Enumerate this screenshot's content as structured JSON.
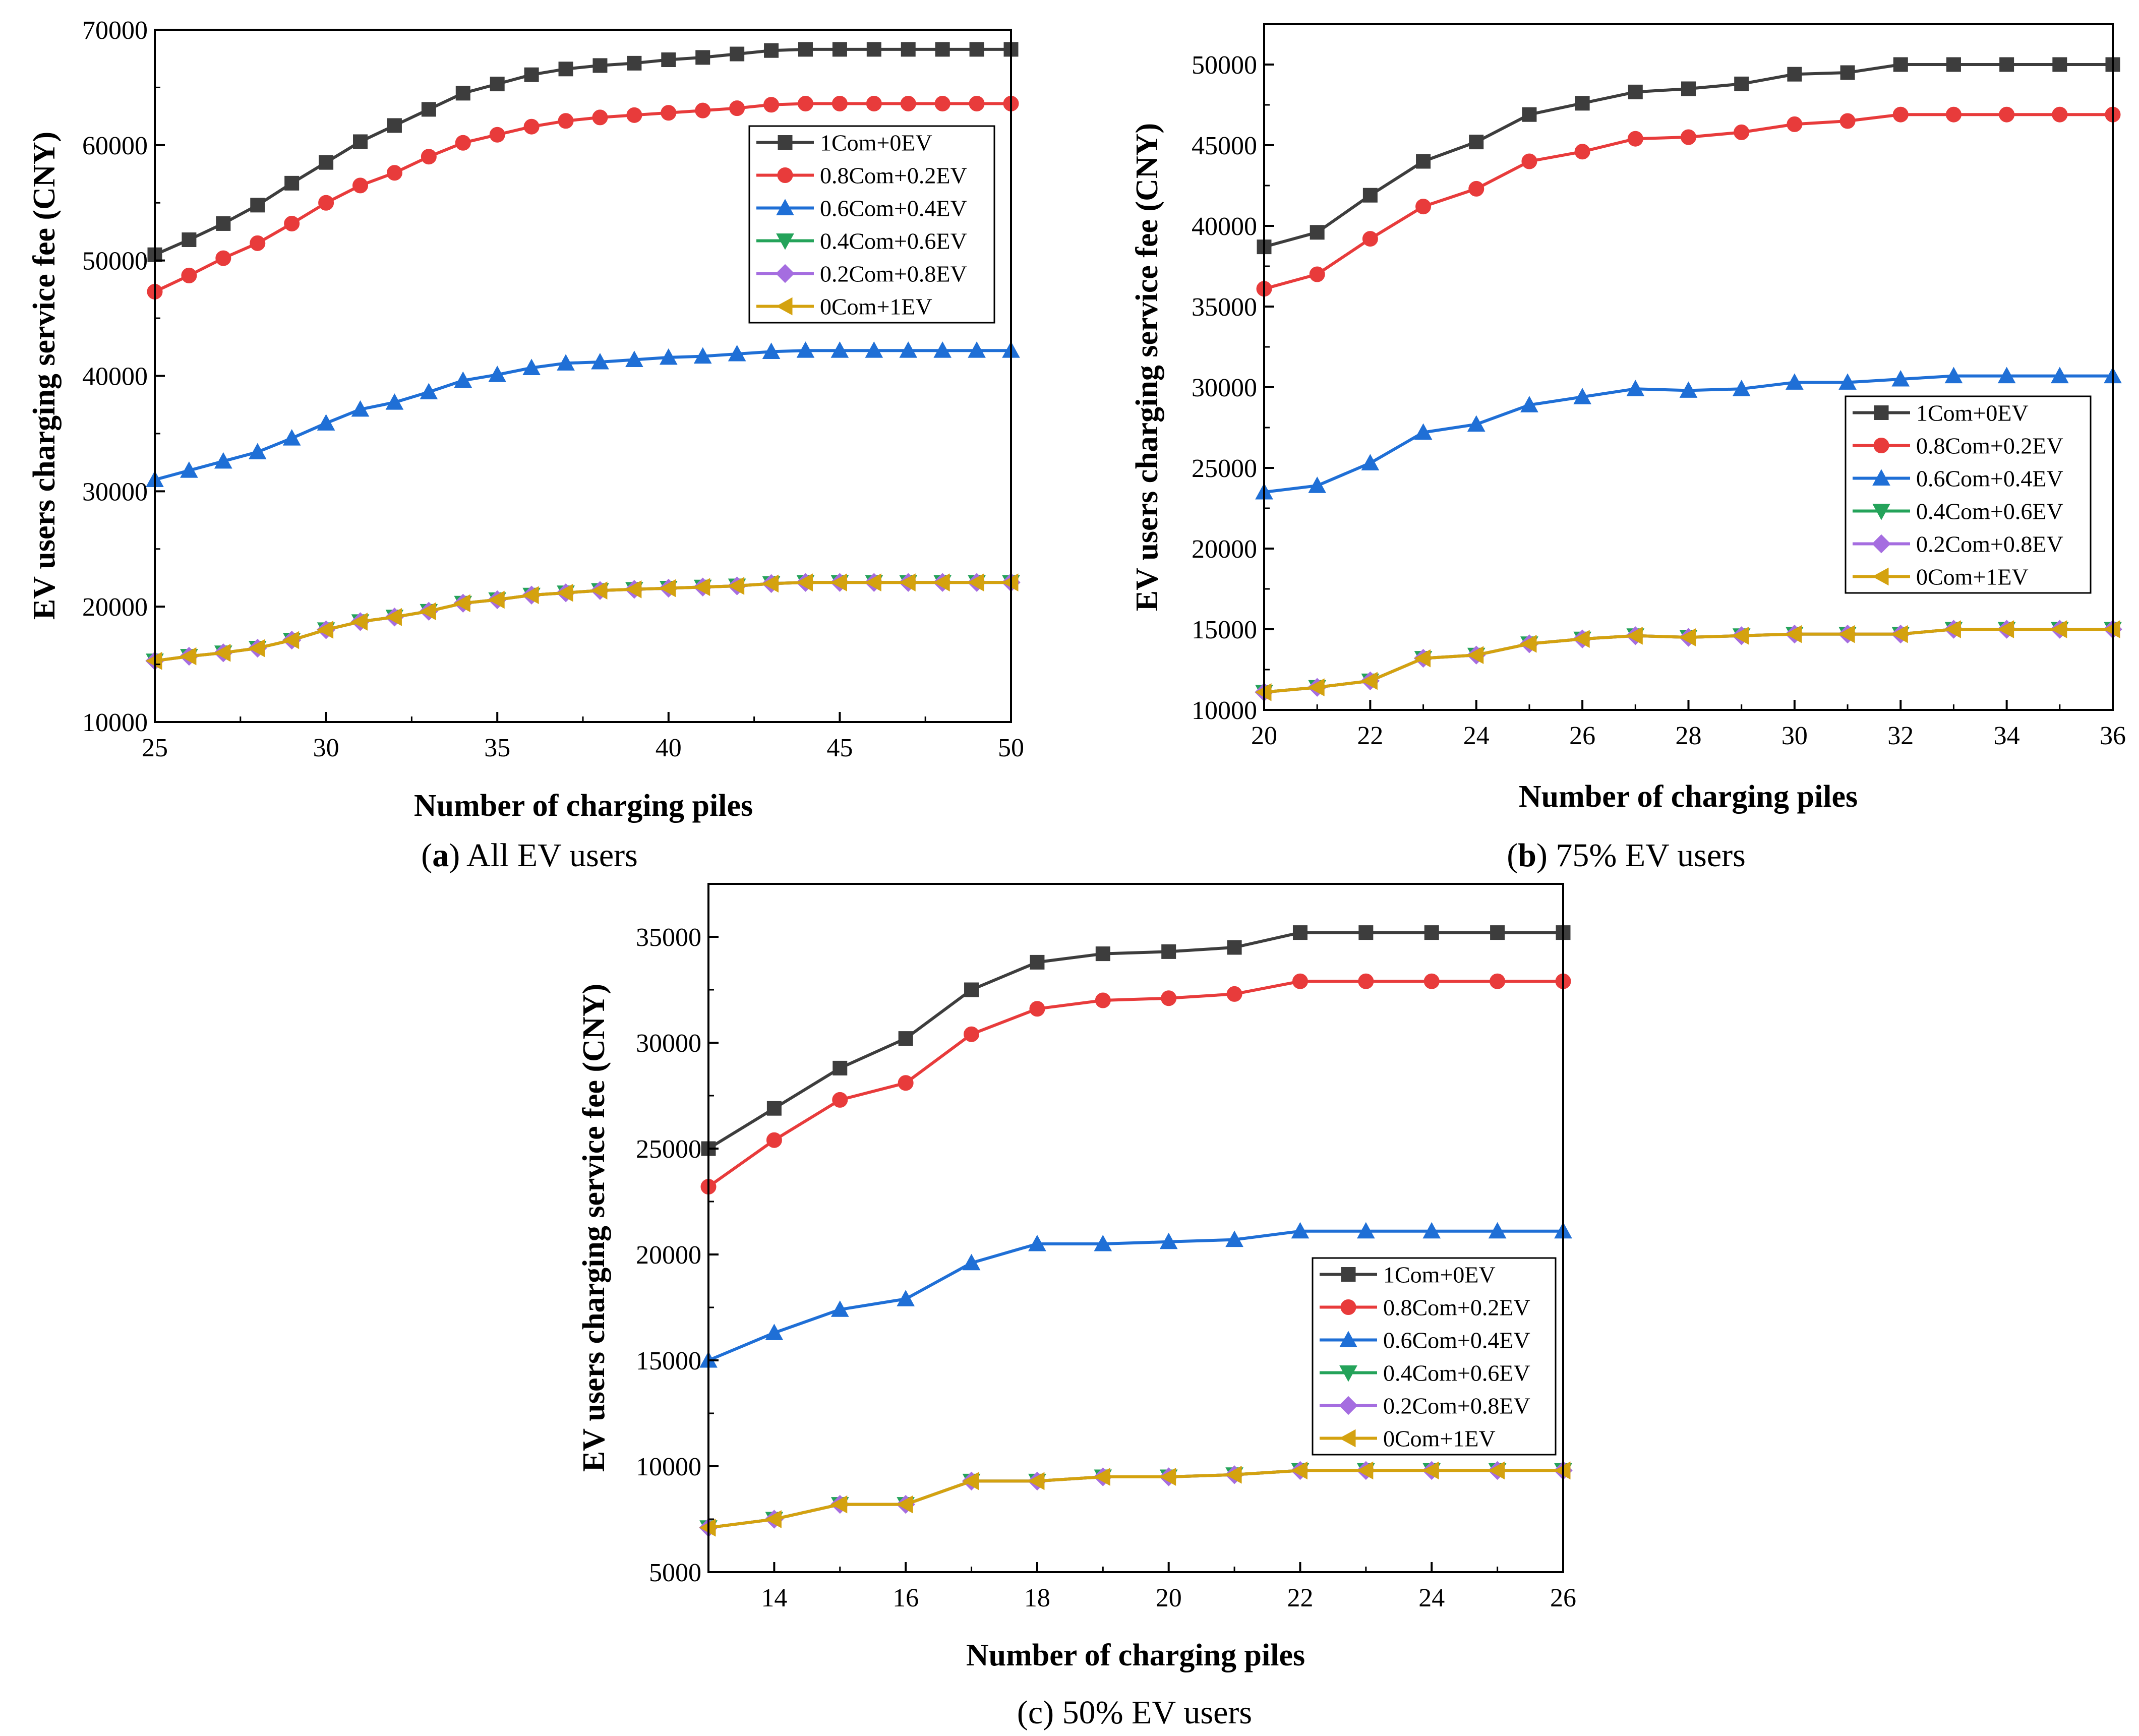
{
  "chart_data": [
    {
      "type": "line",
      "caption_label": "a",
      "caption_text": "All EV users",
      "xlabel": "Number of charging piles",
      "ylabel": "EV users charging service fee (CNY)",
      "xlim": [
        25,
        50
      ],
      "ylim": [
        10000,
        70000
      ],
      "xticks": [
        25,
        30,
        35,
        40,
        45,
        50
      ],
      "yticks": [
        10000,
        20000,
        30000,
        40000,
        50000,
        60000,
        70000
      ],
      "legend_position": "upper-right",
      "x": [
        25,
        26,
        27,
        28,
        29,
        30,
        31,
        32,
        33,
        34,
        35,
        36,
        37,
        38,
        39,
        40,
        41,
        42,
        43,
        44,
        45,
        46,
        47,
        48,
        49,
        50
      ],
      "series": [
        {
          "name": "1Com+0EV",
          "values": [
            50500,
            51800,
            53200,
            54800,
            56700,
            58500,
            60300,
            61700,
            63100,
            64500,
            65300,
            66100,
            66600,
            66900,
            67100,
            67400,
            67600,
            67900,
            68200,
            68300,
            68300,
            68300,
            68300,
            68300,
            68300,
            68300
          ]
        },
        {
          "name": "0.8Com+0.2EV",
          "values": [
            47300,
            48700,
            50200,
            51500,
            53200,
            55000,
            56500,
            57600,
            59000,
            60200,
            60900,
            61600,
            62100,
            62400,
            62600,
            62800,
            63000,
            63200,
            63500,
            63600,
            63600,
            63600,
            63600,
            63600,
            63600,
            63600
          ]
        },
        {
          "name": "0.6Com+0.4EV",
          "values": [
            31000,
            31800,
            32600,
            33400,
            34600,
            35900,
            37100,
            37700,
            38600,
            39600,
            40100,
            40700,
            41100,
            41200,
            41400,
            41600,
            41700,
            41900,
            42100,
            42200,
            42200,
            42200,
            42200,
            42200,
            42200,
            42200
          ]
        },
        {
          "name": "0.4Com+0.6EV",
          "values": [
            15300,
            15700,
            16000,
            16400,
            17100,
            18000,
            18700,
            19100,
            19600,
            20300,
            20600,
            21000,
            21200,
            21400,
            21500,
            21600,
            21700,
            21800,
            22000,
            22100,
            22100,
            22100,
            22100,
            22100,
            22100,
            22100
          ]
        },
        {
          "name": "0.2Com+0.8EV",
          "values": [
            15300,
            15700,
            16000,
            16400,
            17100,
            18000,
            18700,
            19100,
            19600,
            20300,
            20600,
            21000,
            21200,
            21400,
            21500,
            21600,
            21700,
            21800,
            22000,
            22100,
            22100,
            22100,
            22100,
            22100,
            22100,
            22100
          ]
        },
        {
          "name": "0Com+1EV",
          "values": [
            15300,
            15700,
            16000,
            16400,
            17100,
            18000,
            18700,
            19100,
            19600,
            20300,
            20600,
            21000,
            21200,
            21400,
            21500,
            21600,
            21700,
            21800,
            22000,
            22100,
            22100,
            22100,
            22100,
            22100,
            22100,
            22100
          ]
        }
      ]
    },
    {
      "type": "line",
      "caption_label": "b",
      "caption_text": "75% EV users",
      "xlabel": "Number of charging piles",
      "ylabel": "EV users charging service fee (CNY)",
      "xlim": [
        20,
        36
      ],
      "ylim": [
        10000,
        52500
      ],
      "xticks": [
        20,
        22,
        24,
        26,
        28,
        30,
        32,
        34,
        36
      ],
      "yticks": [
        10000,
        15000,
        20000,
        25000,
        30000,
        35000,
        40000,
        45000,
        50000
      ],
      "legend_position": "middle-right",
      "x": [
        20,
        21,
        22,
        23,
        24,
        25,
        26,
        27,
        28,
        29,
        30,
        31,
        32,
        33,
        34,
        35,
        36
      ],
      "series": [
        {
          "name": "1Com+0EV",
          "values": [
            38700,
            39600,
            41900,
            44000,
            45200,
            46900,
            47600,
            48300,
            48500,
            48800,
            49400,
            49500,
            50000,
            50000,
            50000,
            50000,
            50000
          ]
        },
        {
          "name": "0.8Com+0.2EV",
          "values": [
            36100,
            37000,
            39200,
            41200,
            42300,
            44000,
            44600,
            45400,
            45500,
            45800,
            46300,
            46500,
            46900,
            46900,
            46900,
            46900,
            46900
          ]
        },
        {
          "name": "0.6Com+0.4EV",
          "values": [
            23500,
            23900,
            25300,
            27200,
            27700,
            28900,
            29400,
            29900,
            29800,
            29900,
            30300,
            30300,
            30500,
            30700,
            30700,
            30700,
            30700
          ]
        },
        {
          "name": "0.4Com+0.6EV",
          "values": [
            11100,
            11400,
            11800,
            13200,
            13400,
            14100,
            14400,
            14600,
            14500,
            14600,
            14700,
            14700,
            14700,
            15000,
            15000,
            15000,
            15000
          ]
        },
        {
          "name": "0.2Com+0.8EV",
          "values": [
            11100,
            11400,
            11800,
            13200,
            13400,
            14100,
            14400,
            14600,
            14500,
            14600,
            14700,
            14700,
            14700,
            15000,
            15000,
            15000,
            15000
          ]
        },
        {
          "name": "0Com+1EV",
          "values": [
            11100,
            11400,
            11800,
            13200,
            13400,
            14100,
            14400,
            14600,
            14500,
            14600,
            14700,
            14700,
            14700,
            15000,
            15000,
            15000,
            15000
          ]
        }
      ]
    },
    {
      "type": "line",
      "caption_label": "",
      "caption_text": "(c) 50% EV users",
      "xlabel": "Number of charging piles",
      "ylabel": "EV users charging service fee (CNY)",
      "xlim": [
        13,
        26
      ],
      "ylim": [
        5000,
        37500
      ],
      "xticks": [
        14,
        16,
        18,
        20,
        22,
        24,
        26
      ],
      "yticks": [
        5000,
        10000,
        15000,
        20000,
        25000,
        30000,
        35000
      ],
      "legend_position": "lower-right",
      "x": [
        13,
        14,
        15,
        16,
        17,
        18,
        19,
        20,
        21,
        22,
        23,
        24,
        25,
        26
      ],
      "series": [
        {
          "name": "1Com+0EV",
          "values": [
            25000,
            26900,
            28800,
            30200,
            32500,
            33800,
            34200,
            34300,
            34500,
            35200,
            35200,
            35200,
            35200,
            35200
          ]
        },
        {
          "name": "0.8Com+0.2EV",
          "values": [
            23200,
            25400,
            27300,
            28100,
            30400,
            31600,
            32000,
            32100,
            32300,
            32900,
            32900,
            32900,
            32900,
            32900
          ]
        },
        {
          "name": "0.6Com+0.4EV",
          "values": [
            15000,
            16300,
            17400,
            17900,
            19600,
            20500,
            20500,
            20600,
            20700,
            21100,
            21100,
            21100,
            21100,
            21100
          ]
        },
        {
          "name": "0.4Com+0.6EV",
          "values": [
            7100,
            7500,
            8200,
            8200,
            9300,
            9300,
            9500,
            9500,
            9600,
            9800,
            9800,
            9800,
            9800,
            9800
          ]
        },
        {
          "name": "0.2Com+0.8EV",
          "values": [
            7100,
            7500,
            8200,
            8200,
            9300,
            9300,
            9500,
            9500,
            9600,
            9800,
            9800,
            9800,
            9800,
            9800
          ]
        },
        {
          "name": "0Com+1EV",
          "values": [
            7100,
            7500,
            8200,
            8200,
            9300,
            9300,
            9500,
            9500,
            9600,
            9800,
            9800,
            9800,
            9800,
            9800
          ]
        }
      ]
    }
  ],
  "series_styles": [
    {
      "color": "#3d3d3d",
      "marker": "square"
    },
    {
      "color": "#e83b3b",
      "marker": "circle"
    },
    {
      "color": "#1f6fd6",
      "marker": "triangle-up"
    },
    {
      "color": "#24a35a",
      "marker": "triangle-down"
    },
    {
      "color": "#a56de0",
      "marker": "diamond"
    },
    {
      "color": "#d4a20f",
      "marker": "triangle-left"
    }
  ]
}
